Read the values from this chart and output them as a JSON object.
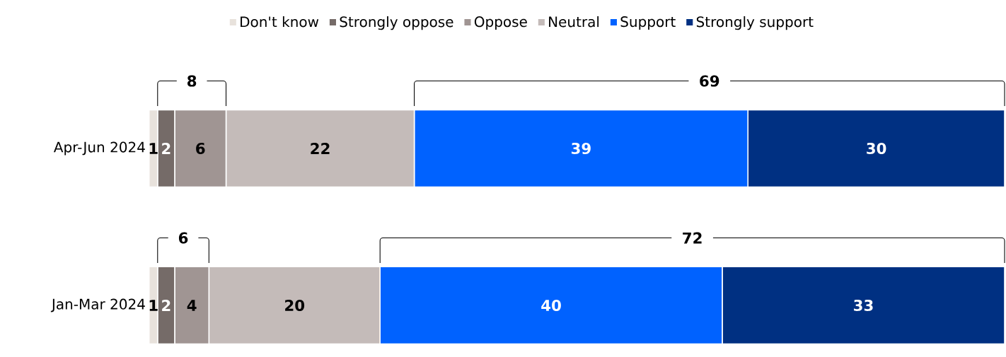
{
  "chart_data": {
    "type": "bar",
    "orientation": "horizontal",
    "stacked": true,
    "data_labels": true,
    "legend": "top",
    "categories": [
      "Apr-Jun 2024",
      "Jan-Mar 2024"
    ],
    "series": [
      {
        "name": "Don't know",
        "color": "#e8e2dc",
        "values": [
          1,
          1
        ]
      },
      {
        "name": "Strongly oppose",
        "color": "#756b68",
        "values": [
          2,
          2
        ]
      },
      {
        "name": "Oppose",
        "color": "#a09593",
        "values": [
          6,
          4
        ]
      },
      {
        "name": "Neutral",
        "color": "#c4bbb9",
        "values": [
          22,
          20
        ]
      },
      {
        "name": "Support",
        "color": "#0062ff",
        "values": [
          39,
          40
        ]
      },
      {
        "name": "Strongly support",
        "color": "#003082",
        "values": [
          30,
          33
        ]
      }
    ],
    "annotations": [
      "8",
      "69",
      "6",
      "72"
    ]
  }
}
